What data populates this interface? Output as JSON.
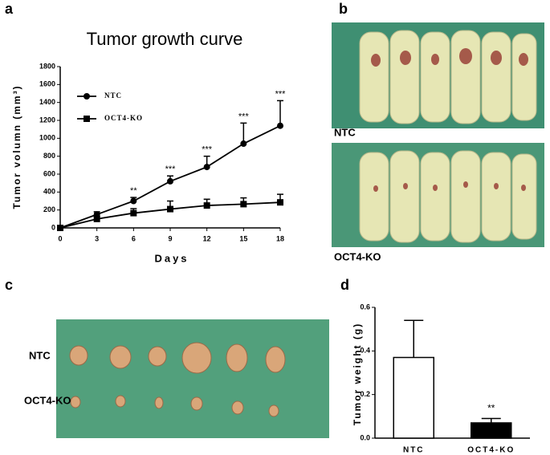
{
  "panel_labels": [
    "a",
    "b",
    "c",
    "d"
  ],
  "chart_data": [
    {
      "type": "line",
      "title": "Tumor growth curve",
      "x_label": "Days",
      "y_label": "Tumor volumn (mm³)",
      "x": [
        0,
        3,
        6,
        9,
        12,
        15,
        18
      ],
      "series": [
        {
          "name": "NTC",
          "color": "#000000",
          "marker": "circle",
          "values": [
            0,
            150,
            300,
            520,
            680,
            940,
            1140
          ],
          "errors": [
            0,
            30,
            40,
            60,
            120,
            230,
            280
          ]
        },
        {
          "name": "OCT4-KO",
          "color": "#000000",
          "marker": "square",
          "values": [
            0,
            100,
            165,
            210,
            250,
            265,
            285
          ],
          "errors": [
            0,
            30,
            50,
            90,
            70,
            70,
            90
          ]
        }
      ],
      "annotations": [
        {
          "x": 6,
          "text": "**"
        },
        {
          "x": 9,
          "text": "***"
        },
        {
          "x": 12,
          "text": "***"
        },
        {
          "x": 15,
          "text": "***"
        },
        {
          "x": 18,
          "text": "***"
        }
      ],
      "xlim": [
        0,
        18
      ],
      "xticks": [
        0,
        3,
        6,
        9,
        12,
        15,
        18
      ],
      "ylim": [
        0,
        1800
      ],
      "yticks": [
        0,
        200,
        400,
        600,
        800,
        1000,
        1200,
        1400,
        1600,
        1800
      ]
    },
    {
      "type": "bar",
      "y_label": "Tumor weight (g)",
      "categories": [
        "NTC",
        "OCT4-KO"
      ],
      "values": [
        0.37,
        0.07
      ],
      "errors": [
        0.17,
        0.02
      ],
      "colors": [
        "#ffffff",
        "#000000"
      ],
      "annotations": [
        {
          "category": "OCT4-KO",
          "text": "**"
        }
      ],
      "ylim": [
        0,
        0.6
      ],
      "yticks": [
        {
          "value": 0,
          "label": "0.0"
        },
        0.2,
        0.4,
        0.6
      ]
    }
  ],
  "photo_b": {
    "labels": [
      "NTC",
      "OCT4-KO"
    ]
  },
  "photo_c": {
    "labels": [
      "NTC",
      "OCT4-KO"
    ]
  }
}
